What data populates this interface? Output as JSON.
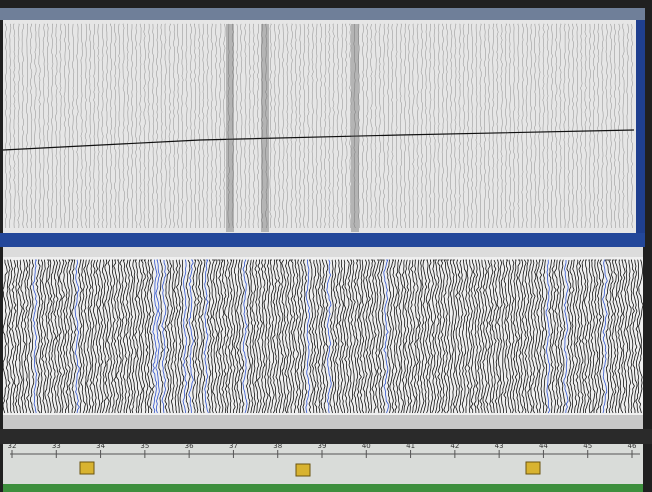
{
  "ruler": {
    "labels": [
      "32",
      "33",
      "34",
      "35",
      "36",
      "37",
      "38",
      "39",
      "40",
      "41",
      "42",
      "43",
      "44",
      "45",
      "46"
    ]
  }
}
